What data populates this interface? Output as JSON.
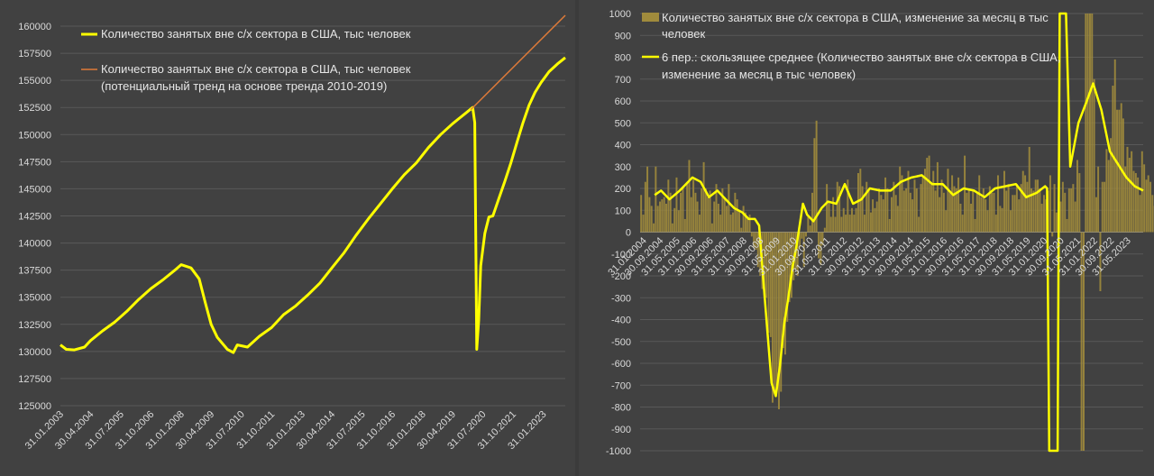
{
  "chart_data": [
    {
      "type": "line",
      "ylim": [
        125000,
        160000
      ],
      "ytick_values": [
        125000,
        127500,
        130000,
        132500,
        135000,
        137500,
        140000,
        142500,
        145000,
        147500,
        150000,
        152500,
        155000,
        157500,
        160000
      ],
      "ytick_labels": [
        "125000",
        "127500",
        "130000",
        "132500",
        "135000",
        "137500",
        "140000",
        "142500",
        "145000",
        "147500",
        "150000",
        "152500",
        "155000",
        "157500",
        "160000"
      ],
      "x_domain": [
        "2003-01-31",
        "2023-12-31"
      ],
      "xtick_labels": [
        "31.01.2003",
        "30.04.2004",
        "31.07.2005",
        "31.10.2006",
        "31.01.2008",
        "30.04.2009",
        "31.07.2010",
        "31.10.2011",
        "31.01.2013",
        "30.04.2014",
        "31.07.2015",
        "31.10.2016",
        "31.01.2018",
        "30.04.2019",
        "31.07.2020",
        "31.10.2021",
        "31.01.2023"
      ],
      "xtick_dates": [
        "2003-01-31",
        "2004-04-30",
        "2005-07-31",
        "2006-10-31",
        "2008-01-31",
        "2009-04-30",
        "2010-07-31",
        "2011-10-31",
        "2013-01-31",
        "2014-04-30",
        "2015-07-31",
        "2016-10-31",
        "2018-01-31",
        "2019-04-30",
        "2020-07-31",
        "2021-10-31",
        "2023-01-31"
      ],
      "grid": true,
      "legend_position": "top-left",
      "series": [
        {
          "name": "Количество занятых вне с/х сектора в США, тыс человек",
          "color": "#ffff00",
          "points": [
            [
              "2003-01-31",
              130600
            ],
            [
              "2003-04-30",
              130200
            ],
            [
              "2003-08-31",
              130150
            ],
            [
              "2004-01-31",
              130400
            ],
            [
              "2004-04-30",
              131000
            ],
            [
              "2004-10-31",
              131900
            ],
            [
              "2005-04-30",
              132700
            ],
            [
              "2005-10-31",
              133700
            ],
            [
              "2006-04-30",
              134800
            ],
            [
              "2006-10-31",
              135800
            ],
            [
              "2007-04-30",
              136600
            ],
            [
              "2007-10-31",
              137500
            ],
            [
              "2008-01-31",
              138000
            ],
            [
              "2008-06-30",
              137700
            ],
            [
              "2008-10-31",
              136700
            ],
            [
              "2009-01-31",
              134500
            ],
            [
              "2009-04-30",
              132500
            ],
            [
              "2009-07-31",
              131300
            ],
            [
              "2009-12-31",
              130200
            ],
            [
              "2010-03-31",
              129900
            ],
            [
              "2010-05-31",
              130600
            ],
            [
              "2010-10-31",
              130400
            ],
            [
              "2011-04-30",
              131400
            ],
            [
              "2011-10-31",
              132200
            ],
            [
              "2012-04-30",
              133400
            ],
            [
              "2012-10-31",
              134200
            ],
            [
              "2013-04-30",
              135200
            ],
            [
              "2013-10-31",
              136300
            ],
            [
              "2014-04-30",
              137700
            ],
            [
              "2014-10-31",
              139100
            ],
            [
              "2015-04-30",
              140700
            ],
            [
              "2015-10-31",
              142200
            ],
            [
              "2016-04-30",
              143600
            ],
            [
              "2016-10-31",
              145000
            ],
            [
              "2017-04-30",
              146300
            ],
            [
              "2017-10-31",
              147400
            ],
            [
              "2018-04-30",
              148800
            ],
            [
              "2018-10-31",
              150000
            ],
            [
              "2019-04-30",
              151000
            ],
            [
              "2019-10-31",
              151900
            ],
            [
              "2020-02-29",
              152500
            ],
            [
              "2020-03-31",
              151100
            ],
            [
              "2020-04-30",
              130200
            ],
            [
              "2020-05-31",
              132900
            ],
            [
              "2020-06-30",
              137900
            ],
            [
              "2020-08-31",
              140900
            ],
            [
              "2020-10-31",
              142400
            ],
            [
              "2020-12-31",
              142500
            ],
            [
              "2021-03-31",
              144100
            ],
            [
              "2021-06-30",
              145700
            ],
            [
              "2021-09-30",
              147400
            ],
            [
              "2021-12-31",
              149300
            ],
            [
              "2022-03-31",
              151100
            ],
            [
              "2022-06-30",
              152700
            ],
            [
              "2022-09-30",
              153900
            ],
            [
              "2022-12-31",
              154800
            ],
            [
              "2023-04-30",
              155800
            ],
            [
              "2023-08-31",
              156500
            ],
            [
              "2023-12-31",
              157100
            ]
          ]
        },
        {
          "name": "Количество занятых вне с/х сектора в США, тыс человек\n(потенциальный тренд на основе тренда 2010-2019)",
          "color": "#e07b39",
          "points": [
            [
              "2020-01-31",
              152300
            ],
            [
              "2023-12-31",
              161000
            ]
          ]
        }
      ]
    },
    {
      "type": "bar+line",
      "ylim": [
        -1000,
        1000
      ],
      "ytick_values": [
        -1000,
        -900,
        -800,
        -700,
        -600,
        -500,
        -400,
        -300,
        -200,
        -100,
        0,
        100,
        200,
        300,
        400,
        500,
        600,
        700,
        800,
        900,
        1000
      ],
      "ytick_labels": [
        "-1000",
        "-900",
        "-800",
        "-700",
        "-600",
        "-500",
        "-400",
        "-300",
        "-200",
        "-100",
        "0",
        "100",
        "200",
        "300",
        "400",
        "500",
        "600",
        "700",
        "800",
        "900",
        "1000"
      ],
      "x_domain": [
        "2003-11-30",
        "2023-12-31"
      ],
      "xtick_labels": [
        "31.01.2004",
        "30.09.2004",
        "31.05.2005",
        "31.01.2006",
        "30.09.2006",
        "31.05.2007",
        "31.01.2008",
        "30.09.2008",
        "31.05.2009",
        "31.01.2010",
        "30.09.2010",
        "31.05.2011",
        "31.01.2012",
        "30.09.2012",
        "31.05.2013",
        "31.01.2014",
        "30.09.2014",
        "31.05.2015",
        "31.01.2016",
        "30.09.2016",
        "31.05.2017",
        "31.01.2018",
        "30.09.2018",
        "31.05.2019",
        "31.01.2020",
        "30.09.2020",
        "31.05.2021",
        "31.01.2022",
        "30.09.2022",
        "31.05.2023"
      ],
      "xtick_dates": [
        "2004-01-31",
        "2004-09-30",
        "2005-05-31",
        "2006-01-31",
        "2006-09-30",
        "2007-05-31",
        "2008-01-31",
        "2008-09-30",
        "2009-05-31",
        "2010-01-31",
        "2010-09-30",
        "2011-05-31",
        "2012-01-31",
        "2012-09-30",
        "2013-05-31",
        "2014-01-31",
        "2014-09-30",
        "2015-05-31",
        "2016-01-31",
        "2016-09-30",
        "2017-05-31",
        "2018-01-31",
        "2018-09-30",
        "2019-05-31",
        "2020-01-31",
        "2020-09-30",
        "2021-05-31",
        "2022-01-31",
        "2022-09-30",
        "2023-05-31"
      ],
      "grid": true,
      "legend_position": "top",
      "bars": {
        "name": "Количество занятых вне с/х сектора в США, изменение за месяц в тыс человек",
        "color": "#a08b3c",
        "start": "2003-12-31",
        "values": [
          170,
          80,
          230,
          300,
          160,
          120,
          40,
          300,
          120,
          140,
          150,
          160,
          130,
          240,
          180,
          40,
          110,
          250,
          100,
          180,
          200,
          60,
          220,
          330,
          160,
          240,
          180,
          140,
          80,
          200,
          320,
          200,
          160,
          190,
          40,
          140,
          220,
          130,
          80,
          200,
          160,
          120,
          220,
          80,
          90,
          180,
          150,
          100,
          20,
          120,
          90,
          60,
          80,
          -20,
          -70,
          -80,
          -160,
          -200,
          -260,
          -300,
          -300,
          -460,
          -480,
          -780,
          -730,
          -700,
          -810,
          -730,
          -530,
          -560,
          -410,
          -320,
          -300,
          -220,
          -170,
          -200,
          -70,
          -30,
          -160,
          -20,
          70,
          30,
          180,
          430,
          510,
          -120,
          -150,
          -60,
          20,
          220,
          140,
          70,
          160,
          70,
          230,
          210,
          70,
          110,
          80,
          240,
          80,
          110,
          80,
          110,
          270,
          290,
          210,
          80,
          230,
          190,
          90,
          150,
          110,
          140,
          200,
          170,
          150,
          250,
          200,
          60,
          160,
          230,
          170,
          120,
          300,
          260,
          190,
          200,
          280,
          180,
          150,
          240,
          200,
          70,
          220,
          260,
          290,
          340,
          350,
          220,
          280,
          190,
          320,
          160,
          240,
          180,
          100,
          290,
          180,
          260,
          210,
          200,
          250,
          130,
          80,
          350,
          180,
          200,
          130,
          190,
          60,
          180,
          260,
          160,
          200,
          150,
          100,
          210,
          180,
          180,
          80,
          260,
          120,
          110,
          280,
          190,
          220,
          100,
          170,
          170,
          220,
          150,
          220,
          280,
          260,
          230,
          390,
          200,
          190,
          240,
          240,
          200,
          130,
          170,
          150,
          190,
          260,
          -20,
          220,
          90,
          160,
          140,
          230,
          180,
          60,
          200,
          200,
          220,
          140,
          330,
          270,
          -1000,
          -1000,
          1000,
          1000,
          1000,
          1000,
          700,
          160,
          300,
          -270,
          230,
          230,
          380,
          330,
          430,
          670,
          790,
          560,
          560,
          590,
          520,
          300,
          390,
          340,
          370,
          280,
          270,
          250,
          170,
          370,
          310,
          240,
          260,
          230,
          170,
          120,
          160,
          100,
          280,
          130,
          140,
          260,
          160,
          170
        ],
        "clipped_labels": []
      },
      "moving_average": {
        "name": "6 пер.: скользящее среднее (Количество занятых вне с/х сектора в США, изменение за месяц в тыс человек)",
        "color": "#ffff00",
        "points": [
          [
            "2004-06-30",
            170
          ],
          [
            "2004-09-30",
            190
          ],
          [
            "2005-01-31",
            150
          ],
          [
            "2005-06-30",
            190
          ],
          [
            "2005-12-31",
            250
          ],
          [
            "2006-04-30",
            230
          ],
          [
            "2006-08-31",
            160
          ],
          [
            "2006-12-31",
            190
          ],
          [
            "2007-04-30",
            150
          ],
          [
            "2007-08-31",
            110
          ],
          [
            "2007-12-31",
            90
          ],
          [
            "2008-03-31",
            60
          ],
          [
            "2008-06-30",
            60
          ],
          [
            "2008-08-31",
            30
          ],
          [
            "2008-10-31",
            -220
          ],
          [
            "2008-12-31",
            -460
          ],
          [
            "2009-02-28",
            -690
          ],
          [
            "2009-04-30",
            -750
          ],
          [
            "2009-06-30",
            -610
          ],
          [
            "2009-08-31",
            -420
          ],
          [
            "2009-10-31",
            -300
          ],
          [
            "2009-12-31",
            -160
          ],
          [
            "2010-02-28",
            -60
          ],
          [
            "2010-05-31",
            130
          ],
          [
            "2010-07-31",
            80
          ],
          [
            "2010-10-31",
            50
          ],
          [
            "2011-02-28",
            110
          ],
          [
            "2011-05-31",
            140
          ],
          [
            "2011-09-30",
            130
          ],
          [
            "2012-01-31",
            220
          ],
          [
            "2012-05-31",
            130
          ],
          [
            "2012-09-30",
            150
          ],
          [
            "2013-01-31",
            200
          ],
          [
            "2013-06-30",
            190
          ],
          [
            "2013-11-30",
            190
          ],
          [
            "2014-04-30",
            230
          ],
          [
            "2014-09-30",
            250
          ],
          [
            "2015-02-28",
            260
          ],
          [
            "2015-07-31",
            220
          ],
          [
            "2015-12-31",
            220
          ],
          [
            "2016-05-31",
            170
          ],
          [
            "2016-10-31",
            200
          ],
          [
            "2017-03-31",
            190
          ],
          [
            "2017-08-31",
            160
          ],
          [
            "2018-01-31",
            200
          ],
          [
            "2018-06-30",
            210
          ],
          [
            "2018-11-30",
            220
          ],
          [
            "2019-04-30",
            160
          ],
          [
            "2019-09-30",
            180
          ],
          [
            "2020-01-31",
            210
          ],
          [
            "2020-02-29",
            200
          ],
          [
            "2020-03-31",
            -1000
          ],
          [
            "2020-07-31",
            -1000
          ],
          [
            "2020-08-31",
            1000
          ],
          [
            "2020-11-30",
            1000
          ],
          [
            "2021-01-31",
            300
          ],
          [
            "2021-05-31",
            500
          ],
          [
            "2021-09-30",
            600
          ],
          [
            "2021-12-31",
            680
          ],
          [
            "2022-04-30",
            560
          ],
          [
            "2022-08-31",
            370
          ],
          [
            "2022-12-31",
            310
          ],
          [
            "2023-04-30",
            250
          ],
          [
            "2023-08-31",
            210
          ],
          [
            "2023-12-31",
            190
          ]
        ]
      }
    }
  ],
  "left_legend": {
    "item1": "Количество занятых вне с/х сектора в США, тыс человек",
    "item2_line1": "Количество занятых вне с/х сектора в США, тыс человек",
    "item2_line2": "(потенциальный тренд на основе тренда 2010-2019)"
  },
  "right_legend": {
    "item1_line1": "Количество занятых вне с/х сектора в США, изменение за месяц в тыс",
    "item1_line2": "человек",
    "item2_line1": "6 пер.: скользящее среднее (Количество занятых вне с/х сектора в США,",
    "item2_line2": "изменение за месяц в тыс человек)"
  }
}
